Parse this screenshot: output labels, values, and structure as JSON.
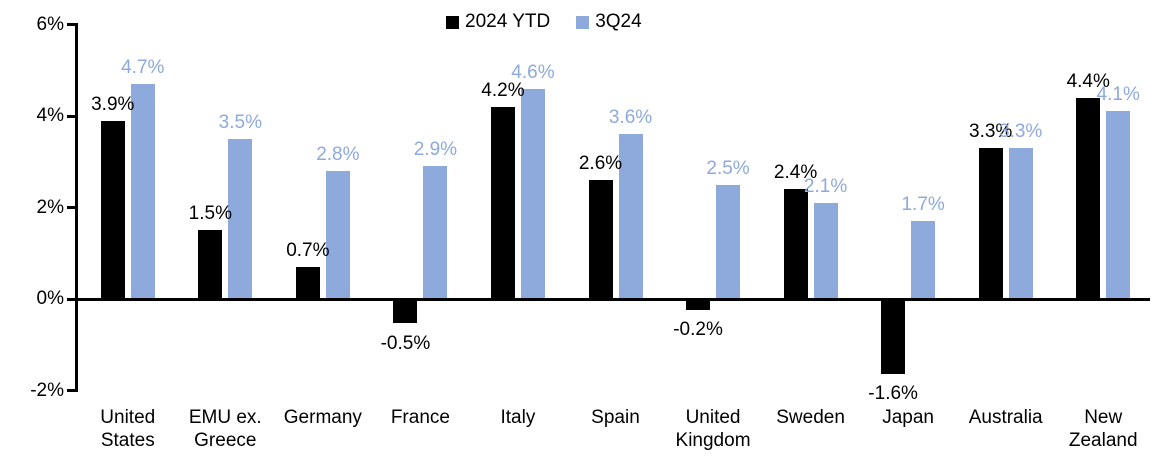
{
  "legend": {
    "items": [
      {
        "label": "2024 YTD",
        "color": "#000000"
      },
      {
        "label": "3Q24",
        "color": "#8EA9DB"
      }
    ]
  },
  "chart_data": {
    "type": "bar",
    "title": "",
    "xlabel": "",
    "ylabel": "",
    "categories": [
      "United States",
      "EMU ex. Greece",
      "Germany",
      "France",
      "Italy",
      "Spain",
      "United Kingdom",
      "Sweden",
      "Japan",
      "Australia",
      "New Zealand"
    ],
    "series": [
      {
        "name": "2024 YTD",
        "color": "#000000",
        "values": [
          3.9,
          1.5,
          0.7,
          -0.5,
          4.2,
          2.6,
          -0.2,
          2.4,
          -1.6,
          3.3,
          4.4
        ],
        "labels": [
          "3.9%",
          "1.5%",
          "0.7%",
          "-0.5%",
          "4.2%",
          "2.6%",
          "-0.2%",
          "2.4%",
          "-1.6%",
          "3.3%",
          "4.4%"
        ]
      },
      {
        "name": "3Q24",
        "color": "#8EA9DB",
        "values": [
          4.7,
          3.5,
          2.8,
          2.9,
          4.6,
          3.6,
          2.5,
          2.1,
          1.7,
          3.3,
          4.1
        ],
        "labels": [
          "4.7%",
          "3.5%",
          "2.8%",
          "2.9%",
          "4.6%",
          "3.6%",
          "2.5%",
          "2.1%",
          "1.7%",
          "3.3%",
          "4.1%"
        ]
      }
    ],
    "ylim": [
      -2,
      6
    ],
    "y_ticks": [
      {
        "value": 6,
        "label": "6%"
      },
      {
        "value": 4,
        "label": "4%"
      },
      {
        "value": 2,
        "label": "2%"
      },
      {
        "value": 0,
        "label": "0%"
      },
      {
        "value": -2,
        "label": "-2%"
      }
    ],
    "grid": false,
    "legend_position": "top-center",
    "value_labels": "outside-end"
  }
}
